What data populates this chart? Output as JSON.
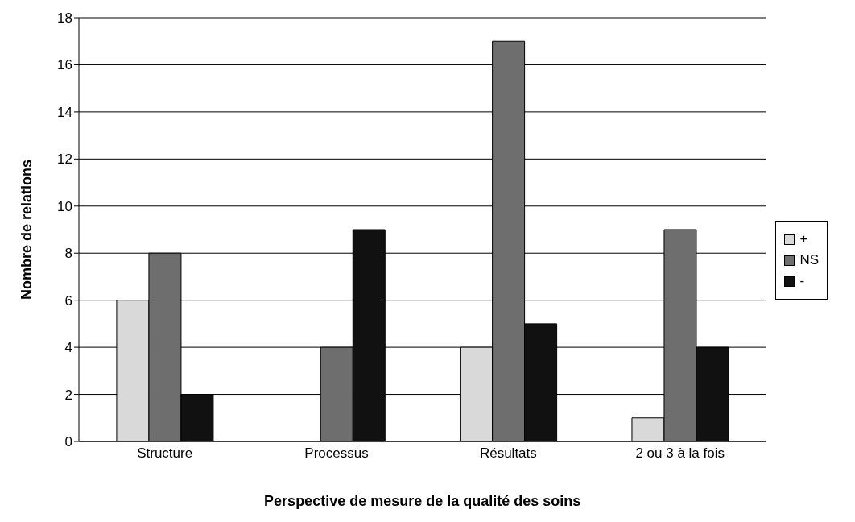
{
  "chart_data": {
    "type": "bar",
    "xlabel": "Perspective de mesure de la qualité des soins",
    "ylabel": "Nombre de relations",
    "categories": [
      "Structure",
      "Processus",
      "Résultats",
      "2 ou 3 à la fois"
    ],
    "series": [
      {
        "name": "+",
        "color": "#d9d9d9",
        "values": [
          6,
          0,
          4,
          1
        ]
      },
      {
        "name": "NS",
        "color": "#6e6e6e",
        "values": [
          8,
          4,
          17,
          9
        ]
      },
      {
        "name": "-",
        "color": "#111111",
        "values": [
          2,
          9,
          5,
          4
        ]
      }
    ],
    "ylim": [
      0,
      18
    ],
    "yticks": [
      0,
      2,
      4,
      6,
      8,
      10,
      12,
      14,
      16,
      18
    ],
    "grid": "y",
    "legend": "right"
  }
}
